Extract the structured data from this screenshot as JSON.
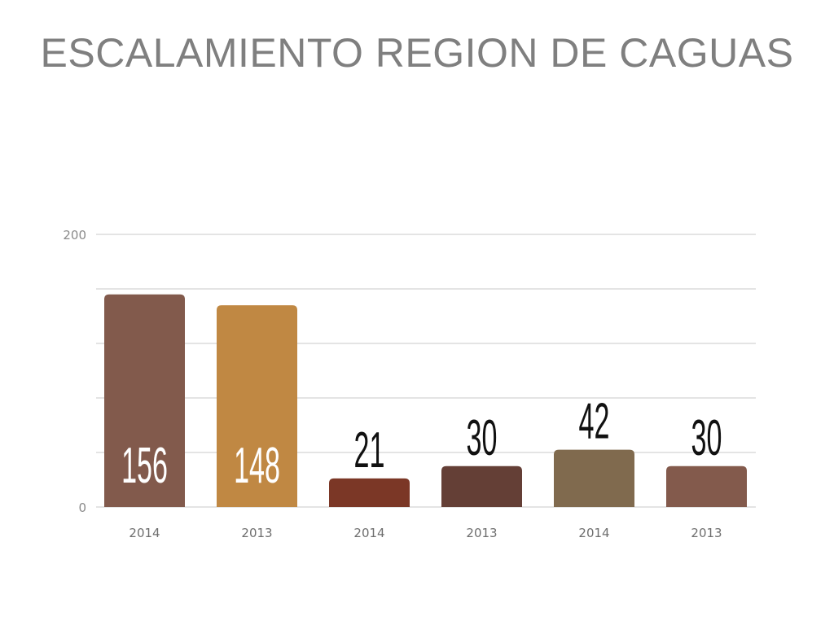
{
  "chart_data": {
    "type": "bar",
    "title": "ESCALAMIENTO REGION DE CAGUAS",
    "categories": [
      "2014",
      "2013",
      "2014",
      "2013",
      "2014",
      "2013"
    ],
    "values": [
      156,
      148,
      21,
      30,
      42,
      30
    ],
    "colors": [
      "#825a4c",
      "#c08843",
      "#7b3726",
      "#643f36",
      "#806a4e",
      "#835a4c"
    ],
    "label_inside": [
      true,
      true,
      false,
      false,
      false,
      false
    ],
    "ylim": [
      0,
      200
    ],
    "yticks_labeled": [
      0,
      200
    ],
    "grid_step": 40,
    "grid": true,
    "xlabel": "",
    "ylabel": ""
  }
}
